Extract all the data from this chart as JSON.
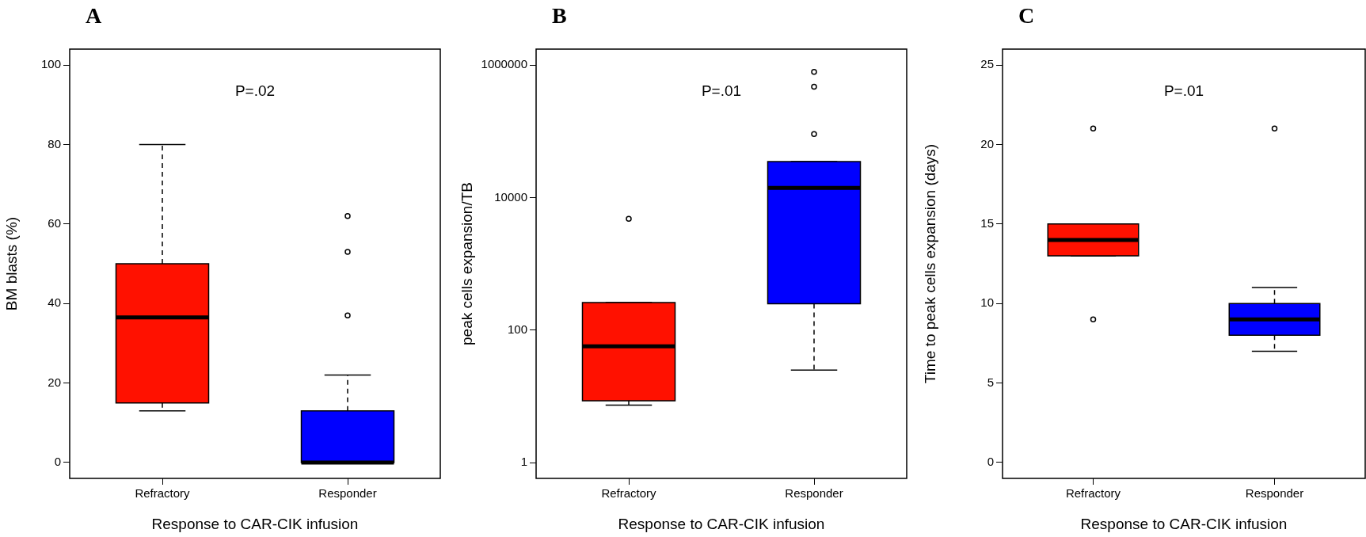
{
  "chart_data": [
    {
      "type": "box",
      "title": "A",
      "xlabel": "Response to CAR-CIK infusion",
      "ylabel": "BM blasts (%)",
      "categories": [
        "Refractory",
        "Responder"
      ],
      "colors": [
        "#ff1100",
        "#0000ff"
      ],
      "boxes": [
        {
          "low": 13,
          "q1": 15,
          "median": 36.5,
          "q3": 50,
          "high": 80
        },
        {
          "low": 0,
          "q1": 0,
          "median": 0,
          "q3": 13,
          "high": 22,
          "outliers": [
            62,
            53,
            37
          ]
        }
      ],
      "ylim": [
        -4,
        104
      ],
      "yticks": [
        0,
        20,
        40,
        60,
        80,
        100
      ],
      "annotations": [
        "P=.02"
      ]
    },
    {
      "type": "box",
      "title": "B",
      "xlabel": "Response to CAR-CIK infusion",
      "ylabel": "peak cells expansion/TB",
      "categories": [
        "Refractory",
        "Responder"
      ],
      "colors": [
        "#ff1100",
        "#0000ff"
      ],
      "boxes": [
        {
          "low": 7.4,
          "q1": 8.6,
          "median": 57,
          "q3": 260,
          "high": 260,
          "outliers": [
            4800
          ]
        },
        {
          "low": 25,
          "q1": 250,
          "median": 14000,
          "q3": 35000,
          "high": 35000,
          "outliers": [
            790000,
            470000,
            91000
          ]
        }
      ],
      "log": "y",
      "ylim": [
        0.58,
        1740000
      ],
      "yticks": [
        1,
        100,
        10000,
        1000000
      ],
      "annotations": [
        "P=.01"
      ]
    },
    {
      "type": "box",
      "title": "C",
      "xlabel": "Response to CAR-CIK infusion",
      "ylabel": "Time to peak cells expansion (days)",
      "categories": [
        "Refractory",
        "Responder"
      ],
      "colors": [
        "#ff1100",
        "#0000ff"
      ],
      "boxes": [
        {
          "low": 13,
          "q1": 13,
          "median": 14,
          "q3": 15,
          "high": 15,
          "outliers": [
            21,
            9
          ]
        },
        {
          "low": 7,
          "q1": 8,
          "median": 9,
          "q3": 10,
          "high": 11,
          "outliers": [
            21
          ]
        }
      ],
      "ylim": [
        -1,
        26
      ],
      "yticks": [
        0,
        5,
        10,
        15,
        20,
        25
      ],
      "annotations": [
        "P=.01"
      ]
    }
  ]
}
